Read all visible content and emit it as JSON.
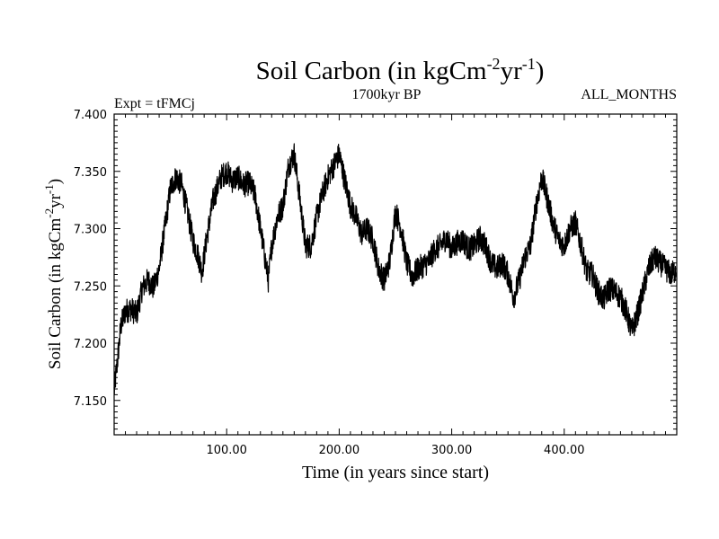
{
  "chart_data": {
    "type": "line",
    "title": {
      "main": "Soil Carbon (in kgCm",
      "sup1": "-2",
      "mid": "yr",
      "sup2": "-1",
      "end": ")"
    },
    "subtitle": "1700kyr BP",
    "experiment_label": "Expt = tFMCj",
    "period_label": "ALL_MONTHS",
    "xlabel": "Time (in years since start)",
    "ylabel": {
      "main": "Soil Carbon (in kgCm",
      "sup1": "-2",
      "mid": "yr",
      "sup2": "-1",
      "end": ")"
    },
    "xlim": [
      0,
      500
    ],
    "ylim": [
      7.12,
      7.4
    ],
    "x_ticks": [
      100,
      200,
      300,
      400
    ],
    "x_tick_labels": [
      "100.00",
      "200.00",
      "300.00",
      "400.00"
    ],
    "y_ticks": [
      7.15,
      7.2,
      7.25,
      7.3,
      7.35,
      7.4
    ],
    "y_tick_labels": [
      "7.150",
      "7.200",
      "7.250",
      "7.300",
      "7.350",
      "7.400"
    ],
    "series": [
      {
        "name": "Soil Carbon",
        "color": "#000000",
        "x": [
          0,
          3,
          6,
          10,
          15,
          20,
          25,
          30,
          35,
          40,
          45,
          50,
          55,
          60,
          65,
          70,
          75,
          78,
          82,
          88,
          95,
          100,
          105,
          110,
          115,
          120,
          125,
          130,
          135,
          137,
          140,
          145,
          150,
          155,
          160,
          163,
          167,
          170,
          175,
          180,
          185,
          190,
          195,
          200,
          205,
          210,
          215,
          220,
          225,
          230,
          235,
          240,
          245,
          250,
          255,
          260,
          265,
          270,
          275,
          280,
          285,
          290,
          295,
          300,
          305,
          310,
          315,
          320,
          325,
          330,
          335,
          340,
          345,
          350,
          355,
          360,
          365,
          370,
          375,
          380,
          384,
          390,
          395,
          400,
          405,
          410,
          415,
          420,
          425,
          430,
          435,
          440,
          445,
          450,
          455,
          460,
          465,
          470,
          475,
          480,
          485,
          490,
          495,
          500
        ],
        "values": [
          7.158,
          7.185,
          7.215,
          7.228,
          7.23,
          7.225,
          7.248,
          7.255,
          7.248,
          7.265,
          7.3,
          7.335,
          7.345,
          7.338,
          7.315,
          7.29,
          7.275,
          7.262,
          7.29,
          7.325,
          7.345,
          7.35,
          7.342,
          7.345,
          7.338,
          7.34,
          7.33,
          7.3,
          7.268,
          7.255,
          7.285,
          7.31,
          7.32,
          7.355,
          7.365,
          7.342,
          7.31,
          7.285,
          7.285,
          7.31,
          7.33,
          7.345,
          7.355,
          7.365,
          7.342,
          7.32,
          7.31,
          7.295,
          7.3,
          7.29,
          7.265,
          7.255,
          7.272,
          7.315,
          7.3,
          7.27,
          7.258,
          7.265,
          7.268,
          7.272,
          7.282,
          7.285,
          7.292,
          7.282,
          7.288,
          7.29,
          7.282,
          7.285,
          7.292,
          7.285,
          7.27,
          7.265,
          7.27,
          7.26,
          7.24,
          7.255,
          7.275,
          7.285,
          7.32,
          7.345,
          7.33,
          7.305,
          7.29,
          7.285,
          7.3,
          7.305,
          7.285,
          7.262,
          7.26,
          7.245,
          7.238,
          7.248,
          7.245,
          7.24,
          7.228,
          7.21,
          7.225,
          7.245,
          7.265,
          7.275,
          7.27,
          7.265,
          7.26,
          7.265
        ]
      }
    ]
  }
}
